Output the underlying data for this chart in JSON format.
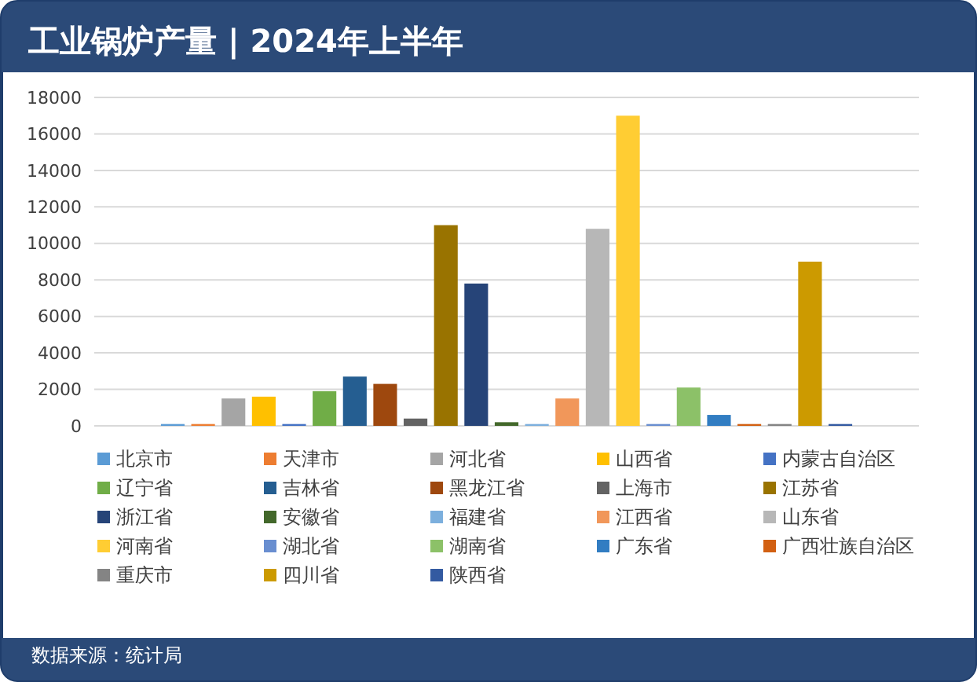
{
  "chart_data": {
    "type": "bar",
    "title": "工业锅炉产量 | 2024年上半年",
    "categories": [
      null
    ],
    "series": [
      {
        "name": "北京市",
        "color": "#5b9bd5",
        "values": [
          100
        ]
      },
      {
        "name": "天津市",
        "color": "#ed7d31",
        "values": [
          100
        ]
      },
      {
        "name": "河北省",
        "color": "#a5a5a5",
        "values": [
          1500
        ]
      },
      {
        "name": "山西省",
        "color": "#ffc000",
        "values": [
          1600
        ]
      },
      {
        "name": "内蒙古自治区",
        "color": "#4472c4",
        "values": [
          100
        ]
      },
      {
        "name": "辽宁省",
        "color": "#70ad47",
        "values": [
          1900
        ]
      },
      {
        "name": "吉林省",
        "color": "#255e91",
        "values": [
          2700
        ]
      },
      {
        "name": "黑龙江省",
        "color": "#9e480e",
        "values": [
          2300
        ]
      },
      {
        "name": "上海市",
        "color": "#636363",
        "values": [
          400
        ]
      },
      {
        "name": "江苏省",
        "color": "#997300",
        "values": [
          11000
        ]
      },
      {
        "name": "浙江省",
        "color": "#264478",
        "values": [
          7800
        ]
      },
      {
        "name": "安徽省",
        "color": "#43682b",
        "values": [
          200
        ]
      },
      {
        "name": "福建省",
        "color": "#7cafdd",
        "values": [
          100
        ]
      },
      {
        "name": "江西省",
        "color": "#f1975a",
        "values": [
          1500
        ]
      },
      {
        "name": "山东省",
        "color": "#b7b7b7",
        "values": [
          10800
        ]
      },
      {
        "name": "河南省",
        "color": "#ffcd33",
        "values": [
          17000
        ]
      },
      {
        "name": "湖北省",
        "color": "#698ed0",
        "values": [
          100
        ]
      },
      {
        "name": "湖南省",
        "color": "#8cc168",
        "values": [
          2100
        ]
      },
      {
        "name": "广东省",
        "color": "#327dc2",
        "values": [
          600
        ]
      },
      {
        "name": "广西壮族自治区",
        "color": "#d26012",
        "values": [
          100
        ]
      },
      {
        "name": "重庆市",
        "color": "#848484",
        "values": [
          100
        ]
      },
      {
        "name": "四川省",
        "color": "#cc9a00",
        "values": [
          9000
        ]
      },
      {
        "name": "陕西省",
        "color": "#335aa1",
        "values": [
          100
        ]
      }
    ],
    "ylim": [
      0,
      18000
    ],
    "yticks": [
      0,
      2000,
      4000,
      6000,
      8000,
      10000,
      12000,
      14000,
      16000,
      18000
    ],
    "grid": "y",
    "legend": "bottom",
    "annotations": [
      "数据来源：统计局"
    ]
  }
}
